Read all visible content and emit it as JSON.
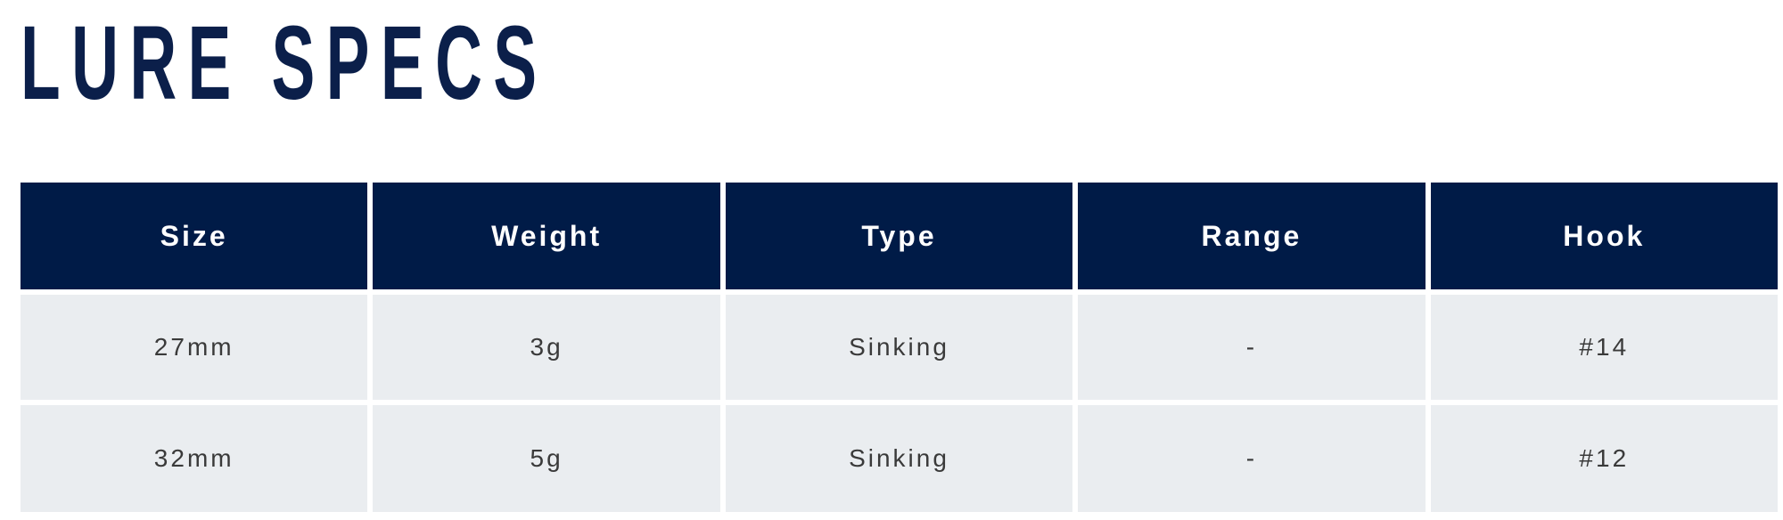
{
  "title": "LURE SPECS",
  "colors": {
    "header_bg": "#001b47",
    "row_bg": "#eaedf0",
    "title": "#0b1f4a"
  },
  "table": {
    "headers": [
      "Size",
      "Weight",
      "Type",
      "Range",
      "Hook"
    ],
    "rows": [
      [
        "27mm",
        "3g",
        "Sinking",
        "-",
        "#14"
      ],
      [
        "32mm",
        "5g",
        "Sinking",
        "-",
        "#12"
      ]
    ]
  }
}
